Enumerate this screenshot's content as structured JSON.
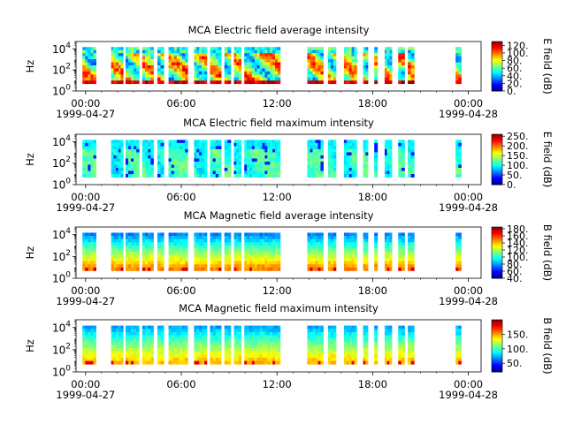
{
  "chart_data": [
    {
      "type": "heatmap",
      "title": "MCA  Electric field average intensity",
      "ylabel": "Hz",
      "yticks": [
        {
          "base": "10",
          "exp": "0"
        },
        {
          "base": "10",
          "exp": "2"
        },
        {
          "base": "10",
          "exp": "4"
        }
      ],
      "ylim": [
        1,
        50000
      ],
      "xlim": [
        "1999-04-27 00:00",
        "1999-04-28 00:00"
      ],
      "xticks": [
        "00:00",
        "06:00",
        "12:00",
        "18:00",
        "00:00"
      ],
      "xdates": [
        "1999-04-27",
        "1999-04-28"
      ],
      "colorbar": {
        "label": "E field (dB)",
        "range": [
          0,
          130
        ],
        "ticks": [
          "0.",
          "20.",
          "40.",
          "60.",
          "80.",
          "100.",
          "120."
        ]
      },
      "coverage_hours": [
        [
          -0.2,
          0.65
        ],
        [
          1.6,
          2.35
        ],
        [
          2.5,
          3.35
        ],
        [
          3.55,
          4.25
        ],
        [
          4.5,
          4.9
        ],
        [
          5.2,
          6.4
        ],
        [
          6.8,
          7.6
        ],
        [
          7.8,
          8.5
        ],
        [
          8.7,
          9.1
        ],
        [
          9.3,
          9.75
        ],
        [
          9.95,
          12.2
        ],
        [
          13.9,
          14.9
        ],
        [
          15.2,
          15.7
        ],
        [
          16.2,
          17.0
        ],
        [
          17.4,
          17.7
        ],
        [
          18.1,
          18.3
        ],
        [
          18.75,
          19.2
        ],
        [
          19.6,
          20.0
        ],
        [
          20.2,
          20.6
        ],
        [
          23.2,
          23.55
        ]
      ]
    },
    {
      "type": "heatmap",
      "title": "MCA  Electric field maximum intensity",
      "ylabel": "Hz",
      "yticks": [
        {
          "base": "10",
          "exp": "0"
        },
        {
          "base": "10",
          "exp": "2"
        },
        {
          "base": "10",
          "exp": "4"
        }
      ],
      "ylim": [
        1,
        50000
      ],
      "xlim": [
        "1999-04-27 00:00",
        "1999-04-28 00:00"
      ],
      "xticks": [
        "00:00",
        "06:00",
        "12:00",
        "18:00",
        "00:00"
      ],
      "xdates": [
        "1999-04-27",
        "1999-04-28"
      ],
      "colorbar": {
        "label": "E field (dB)",
        "range": [
          0,
          260
        ],
        "ticks": [
          "0.",
          "50.",
          "100.",
          "150.",
          "200.",
          "250."
        ]
      },
      "coverage_hours": [
        [
          -0.2,
          0.65
        ],
        [
          1.6,
          2.35
        ],
        [
          2.5,
          3.35
        ],
        [
          3.55,
          4.25
        ],
        [
          4.5,
          4.9
        ],
        [
          5.2,
          6.4
        ],
        [
          6.8,
          7.6
        ],
        [
          7.8,
          8.5
        ],
        [
          8.7,
          9.1
        ],
        [
          9.3,
          9.75
        ],
        [
          9.95,
          12.2
        ],
        [
          13.9,
          14.9
        ],
        [
          15.2,
          15.7
        ],
        [
          16.2,
          17.0
        ],
        [
          17.4,
          17.7
        ],
        [
          18.1,
          18.3
        ],
        [
          18.75,
          19.2
        ],
        [
          19.6,
          20.0
        ],
        [
          20.2,
          20.6
        ],
        [
          23.2,
          23.55
        ]
      ]
    },
    {
      "type": "heatmap",
      "title": "MCA  Magnetic field average intensity",
      "ylabel": "Hz",
      "yticks": [
        {
          "base": "10",
          "exp": "0"
        },
        {
          "base": "10",
          "exp": "2"
        },
        {
          "base": "10",
          "exp": "4"
        }
      ],
      "ylim": [
        1,
        50000
      ],
      "xlim": [
        "1999-04-27 00:00",
        "1999-04-28 00:00"
      ],
      "xticks": [
        "00:00",
        "06:00",
        "12:00",
        "18:00",
        "00:00"
      ],
      "xdates": [
        "1999-04-27",
        "1999-04-28"
      ],
      "colorbar": {
        "label": "B field (dB)",
        "range": [
          40,
          185
        ],
        "ticks": [
          "40.",
          "60.",
          "80.",
          "100.",
          "120.",
          "140.",
          "160.",
          "180."
        ]
      },
      "coverage_hours": [
        [
          -0.2,
          0.65
        ],
        [
          1.6,
          2.35
        ],
        [
          2.5,
          3.35
        ],
        [
          3.55,
          4.25
        ],
        [
          4.5,
          4.9
        ],
        [
          5.2,
          6.4
        ],
        [
          6.8,
          7.6
        ],
        [
          7.8,
          8.5
        ],
        [
          8.7,
          9.1
        ],
        [
          9.3,
          9.75
        ],
        [
          9.95,
          12.2
        ],
        [
          13.9,
          14.9
        ],
        [
          15.2,
          15.7
        ],
        [
          16.2,
          17.0
        ],
        [
          17.4,
          17.7
        ],
        [
          18.1,
          18.3
        ],
        [
          18.75,
          19.2
        ],
        [
          19.6,
          20.0
        ],
        [
          20.2,
          20.6
        ],
        [
          23.2,
          23.55
        ]
      ]
    },
    {
      "type": "heatmap",
      "title": "MCA  Magnetic field maximum intensity",
      "ylabel": "Hz",
      "yticks": [
        {
          "base": "10",
          "exp": "0"
        },
        {
          "base": "10",
          "exp": "2"
        },
        {
          "base": "10",
          "exp": "4"
        }
      ],
      "ylim": [
        1,
        50000
      ],
      "xlim": [
        "1999-04-27 00:00",
        "1999-04-28 00:00"
      ],
      "xticks": [
        "00:00",
        "06:00",
        "12:00",
        "18:00",
        "00:00"
      ],
      "xdates": [
        "1999-04-27",
        "1999-04-28"
      ],
      "colorbar": {
        "label": "B field (dB)",
        "range": [
          20,
          200
        ],
        "ticks": [
          "50.",
          "100.",
          "150."
        ]
      },
      "coverage_hours": [
        [
          -0.2,
          0.65
        ],
        [
          1.6,
          2.35
        ],
        [
          2.5,
          3.35
        ],
        [
          3.55,
          4.25
        ],
        [
          4.5,
          4.9
        ],
        [
          5.2,
          6.4
        ],
        [
          6.8,
          7.6
        ],
        [
          7.8,
          8.5
        ],
        [
          8.7,
          9.1
        ],
        [
          9.3,
          9.75
        ],
        [
          9.95,
          12.2
        ],
        [
          13.9,
          14.9
        ],
        [
          15.2,
          15.7
        ],
        [
          16.2,
          17.0
        ],
        [
          17.4,
          17.7
        ],
        [
          18.1,
          18.3
        ],
        [
          18.75,
          19.2
        ],
        [
          19.6,
          20.0
        ],
        [
          20.2,
          20.6
        ],
        [
          23.2,
          23.55
        ]
      ]
    }
  ]
}
